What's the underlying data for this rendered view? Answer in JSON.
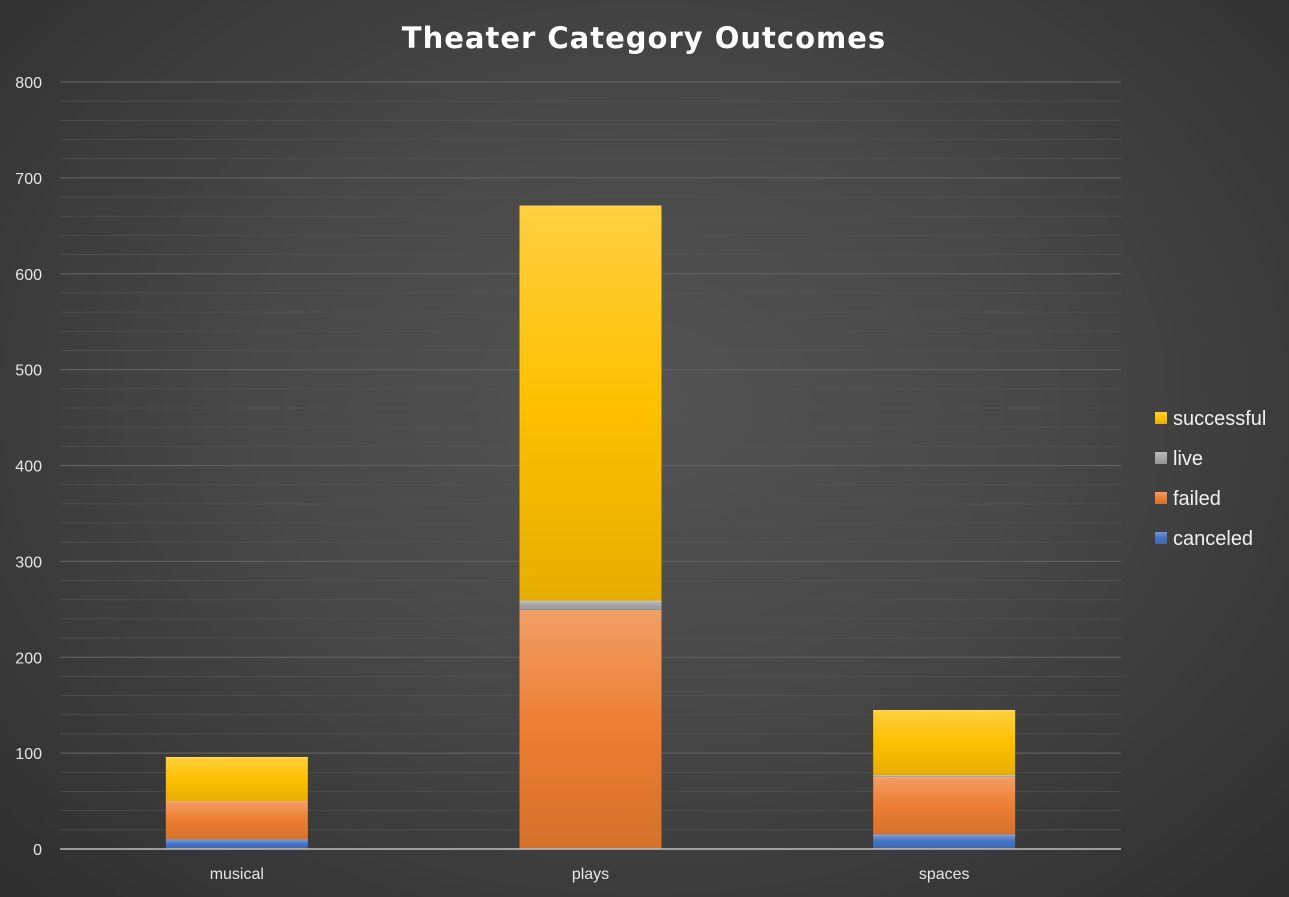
{
  "chart_data": {
    "type": "bar",
    "stacked": true,
    "title": "Theater Category Outcomes",
    "xlabel": "",
    "ylabel": "",
    "categories": [
      "musical",
      "plays",
      "spaces"
    ],
    "series": [
      {
        "name": "canceled",
        "color": "#4472c4",
        "values": [
          10,
          0,
          15
        ]
      },
      {
        "name": "failed",
        "color": "#ed7d31",
        "values": [
          40,
          249,
          60
        ]
      },
      {
        "name": "live",
        "color": "#a5a5a5",
        "values": [
          0,
          10,
          2
        ]
      },
      {
        "name": "successful",
        "color": "#ffc000",
        "values": [
          46,
          412,
          68
        ]
      }
    ],
    "ylim": [
      0,
      800
    ],
    "yticks": [
      "0",
      "100",
      "200",
      "300",
      "400",
      "500",
      "600",
      "700",
      "800"
    ],
    "grid": true,
    "minor_grid": true,
    "legend": {
      "position": "right",
      "order": [
        "successful",
        "live",
        "failed",
        "canceled"
      ]
    }
  },
  "colors": {
    "gridline_major": "#5f5f5f",
    "gridline_minor": "#525252",
    "axis_line": "#bfbfbf"
  }
}
